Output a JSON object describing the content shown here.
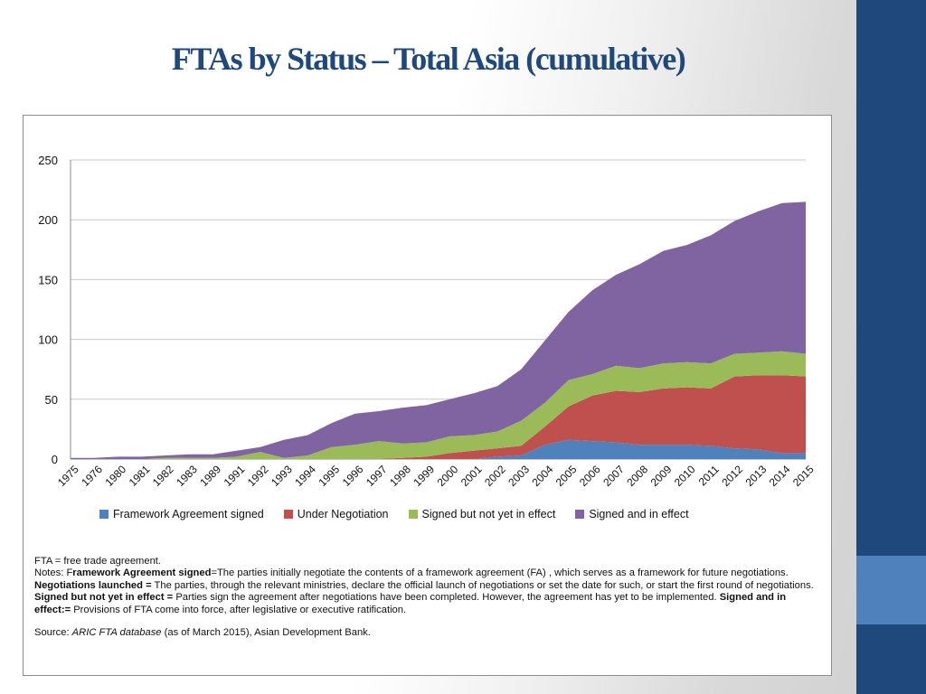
{
  "slide": {
    "title": "FTAs by Status – Total Asia (cumulative)"
  },
  "colors": {
    "title": "#1f497d",
    "sidebar": "#1f497d",
    "sidebar_accent": "#4f81bd"
  },
  "chart_data": {
    "type": "area",
    "stacked": true,
    "title": "",
    "xlabel": "",
    "ylabel": "",
    "ylim": [
      0,
      250
    ],
    "yticks": [
      0,
      50,
      100,
      150,
      200,
      250
    ],
    "grid": true,
    "legend_position": "bottom",
    "categories": [
      "1975",
      "1976",
      "1980",
      "1981",
      "1982",
      "1983",
      "1989",
      "1991",
      "1992",
      "1993",
      "1994",
      "1995",
      "1996",
      "1997",
      "1998",
      "1999",
      "2000",
      "2001",
      "2002",
      "2003",
      "2004",
      "2005",
      "2006",
      "2007",
      "2008",
      "2009",
      "2010",
      "2011",
      "2012",
      "2013",
      "2014",
      "2015"
    ],
    "series": [
      {
        "name": "Framework Agreement signed",
        "color": "#4f81bd",
        "values": [
          0,
          0,
          0,
          0,
          0,
          0,
          0,
          0,
          0,
          0,
          0,
          0,
          0,
          0,
          0,
          0,
          0,
          0,
          2,
          3,
          12,
          16,
          15,
          14,
          12,
          12,
          12,
          11,
          9,
          8,
          5,
          5
        ]
      },
      {
        "name": "Under Negotiation",
        "color": "#c0504d",
        "values": [
          0,
          0,
          0,
          0,
          0,
          0,
          0,
          0,
          0,
          0,
          0,
          0,
          0,
          0,
          1,
          2,
          5,
          7,
          7,
          8,
          15,
          28,
          38,
          43,
          44,
          47,
          48,
          48,
          60,
          62,
          65,
          64
        ]
      },
      {
        "name": "Signed but not yet in effect",
        "color": "#9bbb59",
        "values": [
          0,
          0,
          0,
          0,
          1,
          1,
          1,
          2,
          6,
          1,
          3,
          10,
          12,
          15,
          12,
          12,
          14,
          13,
          14,
          21,
          20,
          22,
          18,
          21,
          20,
          21,
          21,
          21,
          19,
          19,
          20,
          19
        ]
      },
      {
        "name": "Signed and in effect",
        "color": "#8064a2",
        "values": [
          1,
          1,
          2,
          2,
          2,
          3,
          3,
          5,
          4,
          15,
          17,
          20,
          26,
          25,
          30,
          31,
          31,
          35,
          38,
          43,
          52,
          57,
          70,
          76,
          87,
          94,
          98,
          107,
          111,
          118,
          124,
          127
        ]
      }
    ]
  },
  "notes": {
    "line1_prefix": "FTA = free trade agreement.",
    "notes_label": "Notes: F",
    "fa_term": "ramework Agreement signed",
    "fa_def": "=The parties initially negotiate the contents of a framework agreement (FA) , which serves as a framework for future negotiations.",
    "nl_term": "Negotiations launched =",
    "nl_def": " The parties, through the relevant ministries, declare the official launch of negotiations or set the date for such, or start the first round of negotiations.",
    "sn_term": "Signed but not yet in effect =",
    "sn_def": " Parties sign the agreement after negotiations have been completed. However, the agreement has yet to be implemented.",
    "se_term": "Signed and in effect:=",
    "se_def": " Provisions of FTA come into force, after legislative or executive ratification.",
    "source_label": "Source: ",
    "source_db": "ARIC FTA database",
    "source_rest": " (as of March 2015), Asian Development Bank."
  }
}
